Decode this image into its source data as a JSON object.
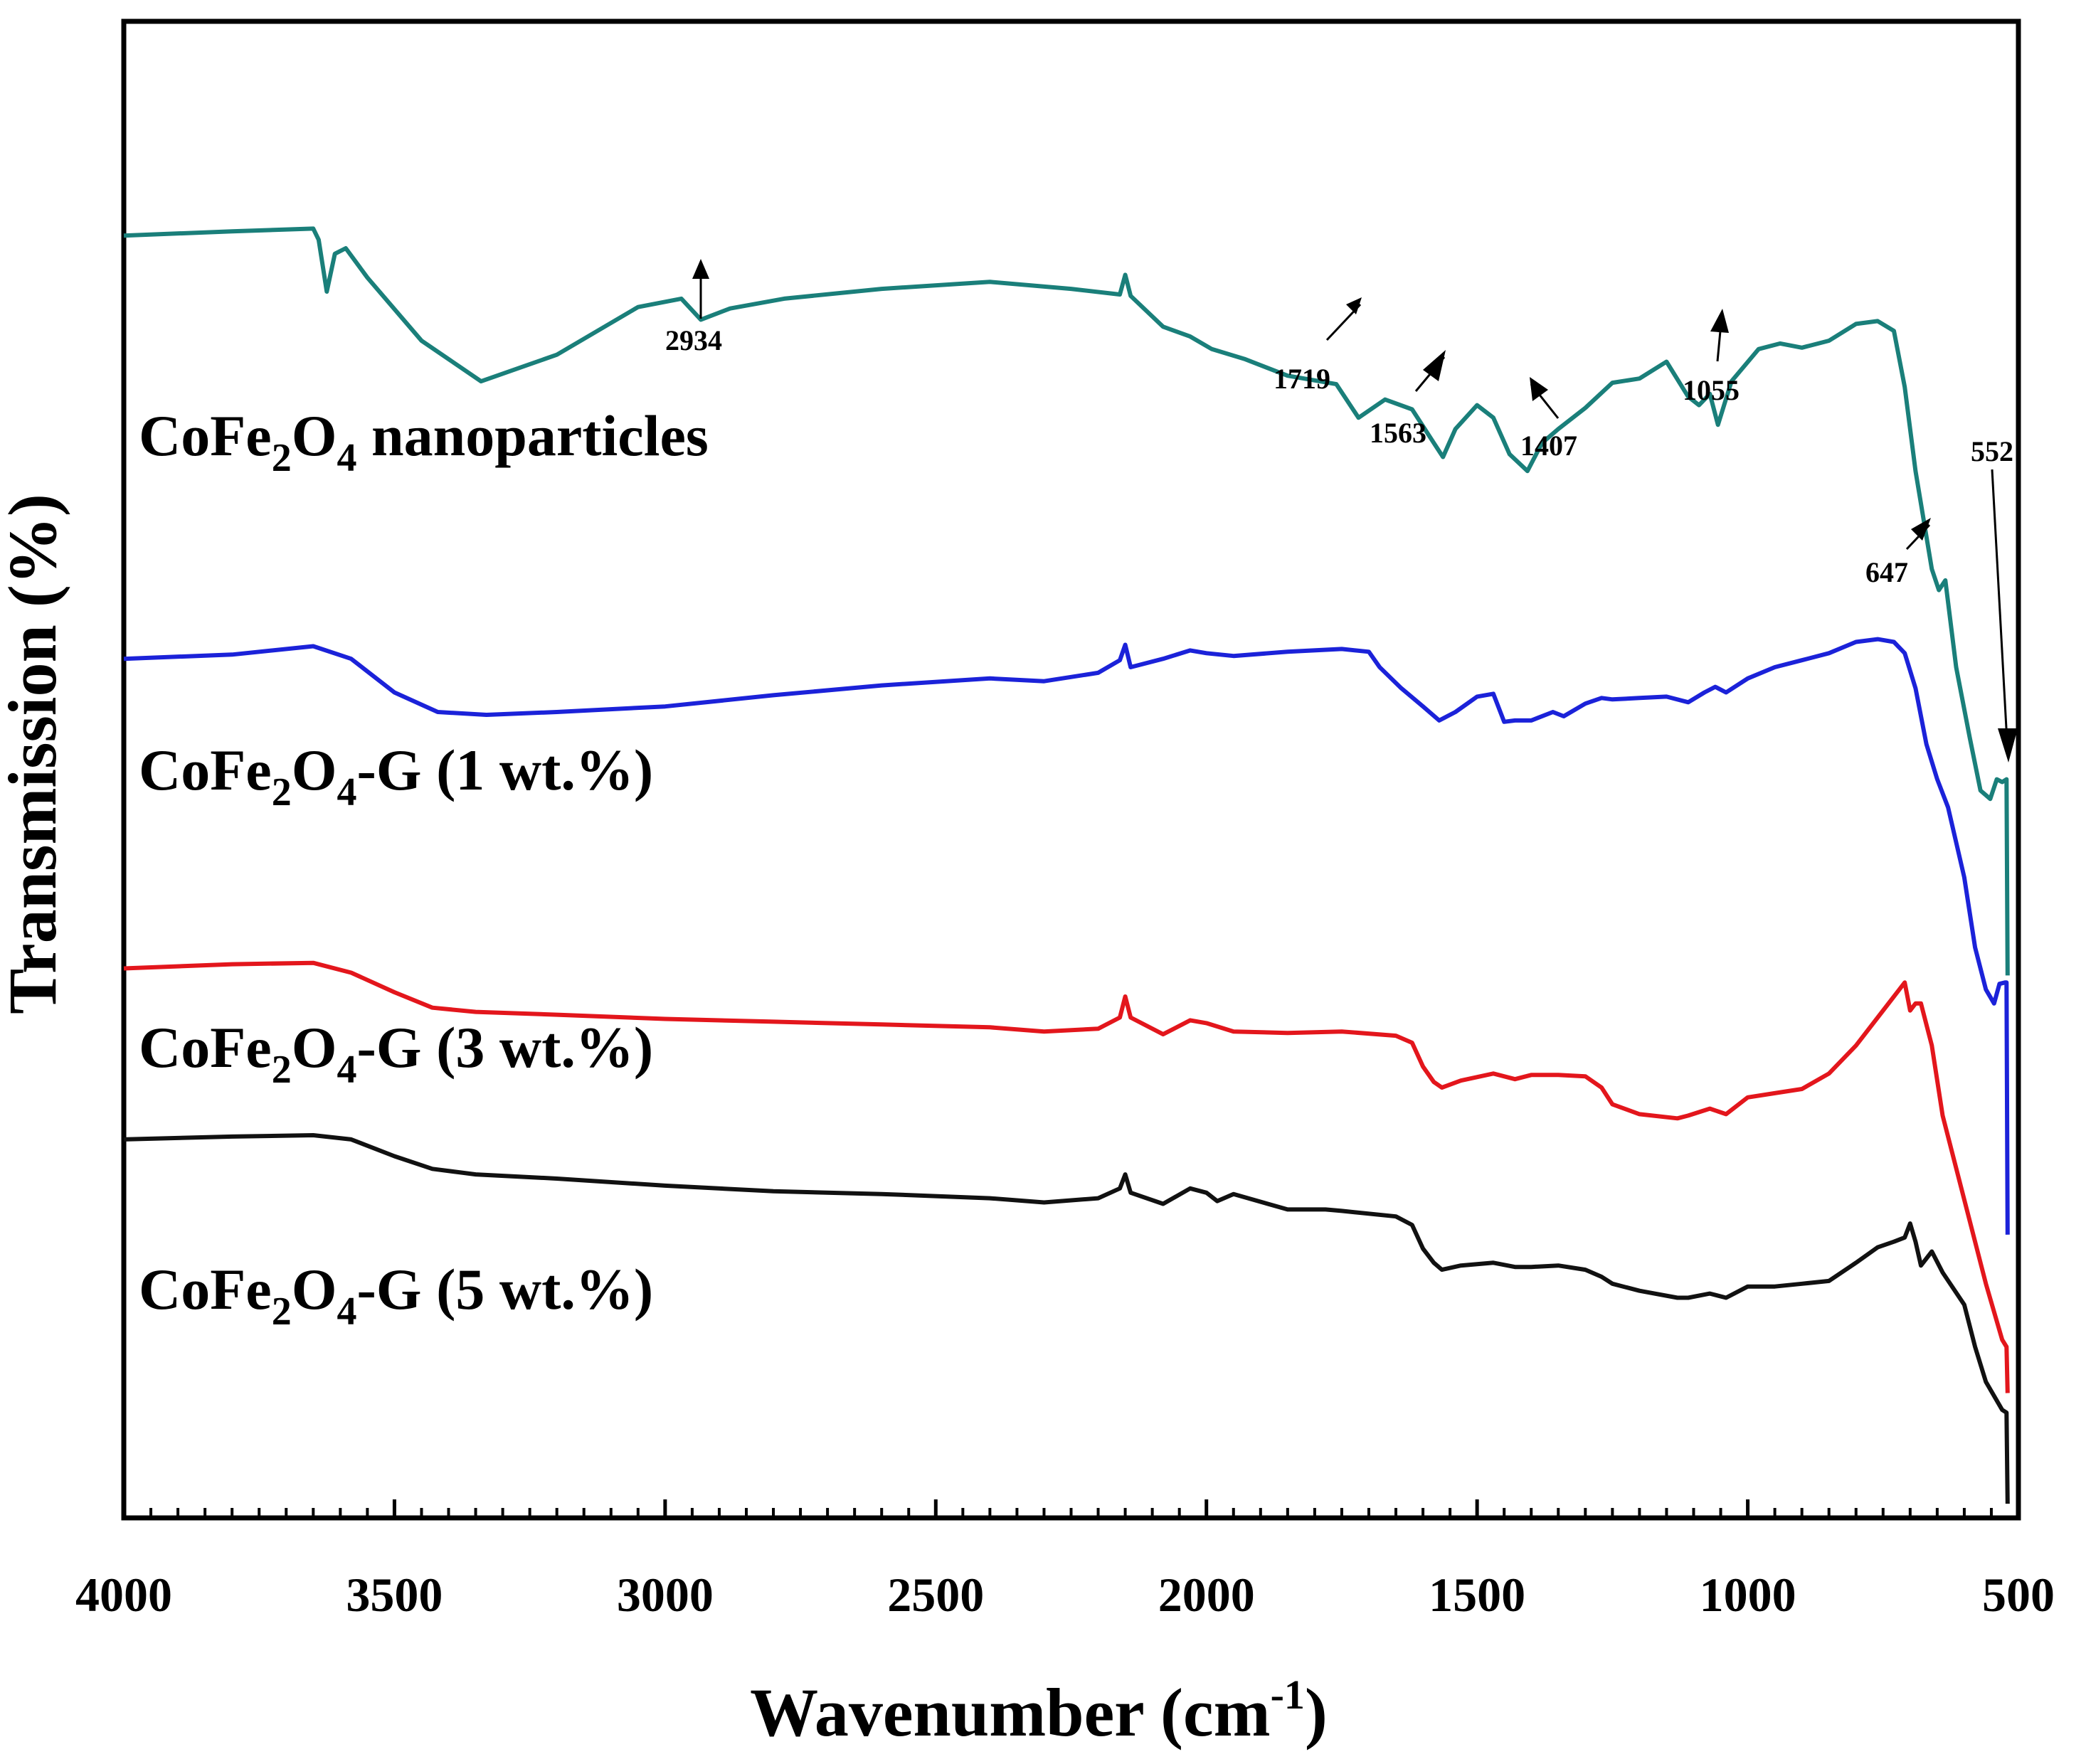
{
  "chart_data": {
    "type": "line",
    "title": "",
    "xlabel": "Wavenumber (cm",
    "xlabel_sup": "-1",
    "xlabel_close": ")",
    "ylabel": "Transmission (%)",
    "xlim": [
      4000,
      500
    ],
    "x_ticks": [
      {
        "value": 4000,
        "label": "4000"
      },
      {
        "value": 3500,
        "label": "3500"
      },
      {
        "value": 3000,
        "label": "3000"
      },
      {
        "value": 2500,
        "label": "2500"
      },
      {
        "value": 2000,
        "label": "2000"
      },
      {
        "value": 1500,
        "label": "1500"
      },
      {
        "value": 1000,
        "label": "1000"
      },
      {
        "value": 500,
        "label": "500"
      }
    ],
    "y_range": [
      0,
      100
    ],
    "series": [
      {
        "name": "CoFe2O4 nanoparticles",
        "label_parts": [
          "CoFe",
          "2",
          "O",
          "4",
          " nanoparticles"
        ],
        "color": "#1a7f7a",
        "x": [
          4000,
          3800,
          3650,
          3640,
          3625,
          3610,
          3590,
          3550,
          3450,
          3340,
          3200,
          3050,
          2970,
          2934,
          2880,
          2780,
          2600,
          2400,
          2250,
          2160,
          2150,
          2140,
          2080,
          2030,
          1990,
          1930,
          1850,
          1760,
          1719,
          1670,
          1620,
          1580,
          1563,
          1540,
          1500,
          1470,
          1440,
          1407,
          1380,
          1350,
          1300,
          1250,
          1200,
          1150,
          1110,
          1090,
          1070,
          1055,
          1030,
          980,
          940,
          900,
          850,
          800,
          760,
          730,
          710,
          690,
          660,
          647,
          635,
          615,
          590,
          570,
          552,
          540,
          530,
          522,
          520
        ],
        "y": [
          90.8,
          91.1,
          91.3,
          90.5,
          86.8,
          89.5,
          89.9,
          87.8,
          83.3,
          80.4,
          82.3,
          85.7,
          86.3,
          84.8,
          85.6,
          86.3,
          87.0,
          87.5,
          87.0,
          86.6,
          88.0,
          86.5,
          84.3,
          83.6,
          82.7,
          82.0,
          80.8,
          80.2,
          77.8,
          79.1,
          78.4,
          76.0,
          75.0,
          77.0,
          78.7,
          77.8,
          75.2,
          74.0,
          76.0,
          77.0,
          78.5,
          80.3,
          80.6,
          81.8,
          79.3,
          78.7,
          79.5,
          77.3,
          80.4,
          82.7,
          83.1,
          82.8,
          83.3,
          84.5,
          84.7,
          84.0,
          80.0,
          74.0,
          67.0,
          65.5,
          66.2,
          60.0,
          55.0,
          51.2,
          50.6,
          52.0,
          51.8,
          52.0,
          38.0
        ]
      },
      {
        "name": "CoFe2O4-G (1 wt.%)",
        "label_parts": [
          "CoFe",
          "2",
          "O",
          "4",
          "-G (1 wt.%)"
        ],
        "color": "#1b22d9",
        "x": [
          4000,
          3800,
          3650,
          3580,
          3500,
          3420,
          3330,
          3200,
          3000,
          2800,
          2600,
          2400,
          2300,
          2200,
          2160,
          2150,
          2140,
          2080,
          2030,
          2000,
          1950,
          1850,
          1750,
          1700,
          1680,
          1640,
          1600,
          1570,
          1540,
          1500,
          1470,
          1450,
          1430,
          1400,
          1360,
          1340,
          1300,
          1270,
          1250,
          1200,
          1150,
          1110,
          1080,
          1060,
          1040,
          1000,
          950,
          900,
          850,
          800,
          760,
          730,
          710,
          690,
          670,
          650,
          630,
          600,
          580,
          560,
          545,
          535,
          525,
          522,
          520
        ],
        "y": [
          60.6,
          60.9,
          61.5,
          60.6,
          58.2,
          56.8,
          56.6,
          56.8,
          57.2,
          58.0,
          58.7,
          59.2,
          59.0,
          59.6,
          60.5,
          61.6,
          60.0,
          60.6,
          61.2,
          61.0,
          60.8,
          61.1,
          61.3,
          61.1,
          60.0,
          58.5,
          57.2,
          56.2,
          56.8,
          57.9,
          58.1,
          56.1,
          56.2,
          56.2,
          56.8,
          56.5,
          57.4,
          57.8,
          57.7,
          57.8,
          57.9,
          57.5,
          58.2,
          58.6,
          58.2,
          59.2,
          60.0,
          60.5,
          61.0,
          61.8,
          62.0,
          61.8,
          61.0,
          58.5,
          54.5,
          52.0,
          50.0,
          45.0,
          40.0,
          37.0,
          36.0,
          37.4,
          37.5,
          37.5,
          19.5
        ]
      },
      {
        "name": "CoFe2O4-G (3 wt.%)",
        "label_parts": [
          "CoFe",
          "2",
          "O",
          "4",
          "-G (3 wt.%)"
        ],
        "color": "#e3161c",
        "x": [
          4000,
          3800,
          3650,
          3580,
          3500,
          3430,
          3350,
          3200,
          3000,
          2800,
          2600,
          2400,
          2300,
          2200,
          2160,
          2150,
          2140,
          2080,
          2030,
          2000,
          1950,
          1850,
          1750,
          1650,
          1620,
          1600,
          1580,
          1565,
          1530,
          1470,
          1430,
          1400,
          1350,
          1300,
          1270,
          1250,
          1200,
          1130,
          1110,
          1070,
          1040,
          1000,
          950,
          900,
          850,
          800,
          760,
          730,
          710,
          700,
          690,
          680,
          660,
          640,
          600,
          560,
          530,
          522,
          520
        ],
        "y": [
          38.5,
          38.8,
          38.9,
          38.2,
          36.8,
          35.7,
          35.4,
          35.2,
          34.9,
          34.7,
          34.5,
          34.3,
          34.0,
          34.2,
          35.0,
          36.5,
          35.0,
          33.8,
          34.8,
          34.6,
          34.0,
          33.9,
          34.0,
          33.7,
          33.2,
          31.5,
          30.4,
          30.0,
          30.5,
          31.0,
          30.6,
          30.9,
          30.9,
          30.8,
          30.0,
          28.8,
          28.1,
          27.8,
          28.0,
          28.5,
          28.1,
          29.3,
          29.6,
          29.9,
          31.0,
          33.0,
          35.0,
          36.5,
          37.5,
          35.5,
          36.0,
          36.0,
          33.0,
          28.0,
          22.0,
          16.0,
          12.0,
          11.5,
          8.2
        ]
      },
      {
        "name": "CoFe2O4-G (5 wt.%)",
        "label_parts": [
          "CoFe",
          "2",
          "O",
          "4",
          "-G (5 wt.%)"
        ],
        "color": "#111111",
        "x": [
          4000,
          3800,
          3650,
          3580,
          3500,
          3430,
          3350,
          3200,
          3000,
          2800,
          2600,
          2400,
          2300,
          2200,
          2160,
          2150,
          2140,
          2080,
          2030,
          2000,
          1980,
          1950,
          1850,
          1780,
          1750,
          1650,
          1620,
          1600,
          1580,
          1565,
          1530,
          1470,
          1430,
          1400,
          1350,
          1300,
          1270,
          1250,
          1200,
          1130,
          1110,
          1070,
          1040,
          1000,
          950,
          900,
          850,
          800,
          760,
          730,
          710,
          700,
          690,
          680,
          660,
          640,
          600,
          580,
          560,
          530,
          522,
          520
        ],
        "y": [
          26.3,
          26.5,
          26.6,
          26.3,
          25.1,
          24.2,
          23.8,
          23.5,
          23.0,
          22.6,
          22.4,
          22.1,
          21.8,
          22.1,
          22.8,
          23.8,
          22.5,
          21.7,
          22.8,
          22.5,
          21.9,
          22.4,
          21.3,
          21.3,
          21.2,
          20.8,
          20.2,
          18.5,
          17.5,
          17.0,
          17.3,
          17.5,
          17.2,
          17.2,
          17.3,
          17.0,
          16.5,
          16.0,
          15.5,
          15.0,
          15.0,
          15.3,
          15.0,
          15.8,
          15.8,
          16.0,
          16.2,
          17.5,
          18.6,
          19.0,
          19.3,
          20.3,
          19.0,
          17.3,
          18.3,
          16.8,
          14.5,
          11.5,
          9.0,
          7.0,
          6.8,
          0.3
        ]
      }
    ],
    "peak_annotations": [
      {
        "label": "2934"
      },
      {
        "label": "1719"
      },
      {
        "label": "1563"
      },
      {
        "label": "1407"
      },
      {
        "label": "1055"
      },
      {
        "label": "647"
      },
      {
        "label": "552"
      }
    ],
    "grid": false,
    "legend": "inline text labels beside each curve"
  }
}
